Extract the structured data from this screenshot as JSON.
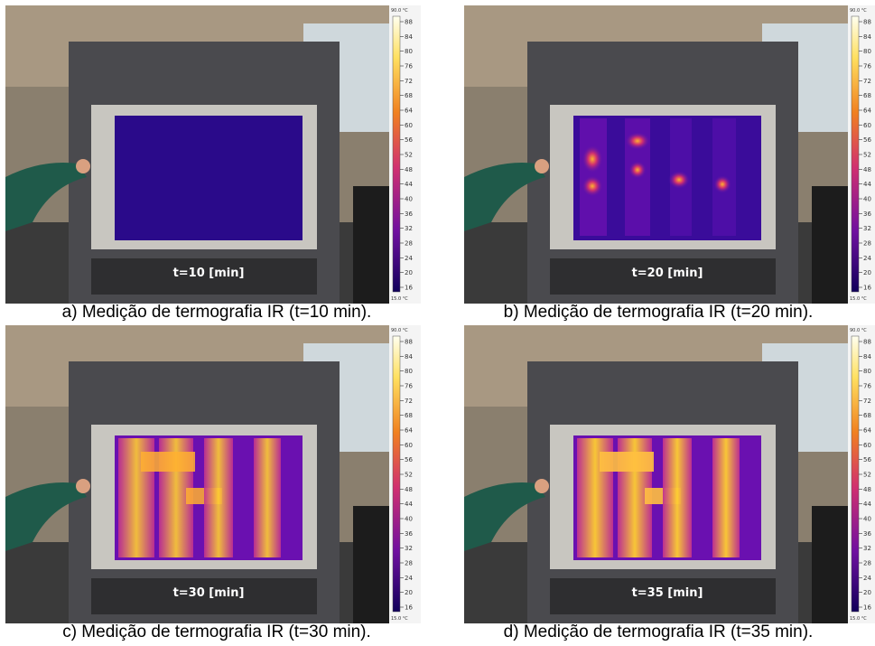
{
  "panels": [
    {
      "caption": "a) Medição de termografia IR (t=10 min).",
      "overlay_label": "t=10 [min]",
      "state": "cold"
    },
    {
      "caption": "b) Medição de termografia IR (t=20 min).",
      "overlay_label": "t=20 [min]",
      "state": "spots"
    },
    {
      "caption": "c) Medição de termografia IR (t=30 min).",
      "overlay_label": "t=30 [min]",
      "state": "hot"
    },
    {
      "caption": "d) Medição de termografia IR (t=35 min).",
      "overlay_label": "t=35 [min]",
      "state": "hot"
    }
  ],
  "colorbar": {
    "max_label": "90.0 °C",
    "min_label": "15.0 °C",
    "ticks": [
      "88",
      "84",
      "80",
      "76",
      "72",
      "68",
      "64",
      "60",
      "56",
      "52",
      "48",
      "44",
      "40",
      "36",
      "32",
      "28",
      "24",
      "20",
      "16"
    ]
  },
  "colors": {
    "cold": "#2a0a8a",
    "purple": "#6a10b0",
    "magenta": "#c03090",
    "orange": "#f08020",
    "yellow": "#ffd030"
  }
}
